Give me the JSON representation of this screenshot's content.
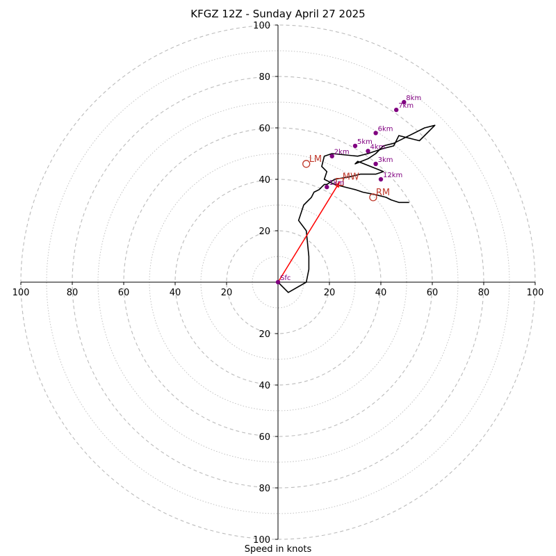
{
  "chart_data": {
    "type": "hodograph",
    "title": "KFGZ 12Z - Sunday April 27 2025",
    "xlabel": "Speed in knots",
    "units": "knots",
    "max_speed": 100,
    "ring_speeds": [
      10,
      20,
      30,
      40,
      50,
      60,
      70,
      80,
      90,
      100
    ],
    "tick_values": [
      20,
      40,
      60,
      80,
      100
    ],
    "x_tick_labels": [
      "100",
      "80",
      "60",
      "40",
      "20",
      "20",
      "40",
      "60",
      "80",
      "100"
    ],
    "y_tick_labels": [
      "100",
      "80",
      "60",
      "40",
      "20",
      "20",
      "40",
      "60",
      "80",
      "100"
    ],
    "colors": {
      "trace": "#000000",
      "height_markers": "#800080",
      "storm_vectors": "#c0392b",
      "grid": "#bbbbbb"
    },
    "trace": {
      "u": [
        0,
        4,
        11,
        12,
        12,
        11,
        8,
        9,
        10,
        13,
        14,
        16,
        17,
        18,
        19,
        22,
        28,
        32,
        33,
        38,
        41,
        31,
        30,
        35,
        38,
        41,
        45,
        49,
        57,
        61,
        55,
        47,
        45,
        41,
        38,
        35,
        31,
        21,
        18,
        17,
        18,
        19,
        18,
        20,
        22,
        26,
        30,
        33,
        38,
        42,
        44,
        47,
        48,
        49,
        50,
        51
      ],
      "v": [
        0,
        -4,
        0,
        5,
        10,
        20,
        24,
        27,
        30,
        33,
        35,
        36,
        37,
        38,
        38,
        40,
        41,
        42,
        42,
        42,
        43,
        47,
        46,
        48,
        50,
        53,
        54,
        56,
        60,
        61,
        55,
        57,
        53,
        52,
        51,
        50,
        49,
        50,
        49,
        45,
        44,
        43,
        40,
        39,
        38,
        37,
        36,
        35,
        34,
        33,
        32,
        31,
        31,
        31,
        31,
        31
      ]
    },
    "height_markers": [
      {
        "label": "Sfc",
        "u": 0,
        "v": 0
      },
      {
        "label": "1km",
        "u": 19,
        "v": 37
      },
      {
        "label": "2km",
        "u": 21,
        "v": 49
      },
      {
        "label": "3km",
        "u": 38,
        "v": 46
      },
      {
        "label": "4km",
        "u": 35,
        "v": 51
      },
      {
        "label": "5km",
        "u": 30,
        "v": 53
      },
      {
        "label": "6km",
        "u": 38,
        "v": 58
      },
      {
        "label": "7km",
        "u": 46,
        "v": 67
      },
      {
        "label": "8km",
        "u": 49,
        "v": 70
      },
      {
        "label": "12km",
        "u": 40,
        "v": 40
      }
    ],
    "storm_motions": [
      {
        "label": "LM",
        "u": 11,
        "v": 46,
        "marker": "circle"
      },
      {
        "label": "MW",
        "u": 24,
        "v": 39,
        "marker": "square"
      },
      {
        "label": "RM",
        "u": 37,
        "v": 33,
        "marker": "circle"
      }
    ],
    "shear_vector": {
      "from_u": 0,
      "from_v": 0,
      "to_u": 24,
      "to_v": 39
    }
  }
}
